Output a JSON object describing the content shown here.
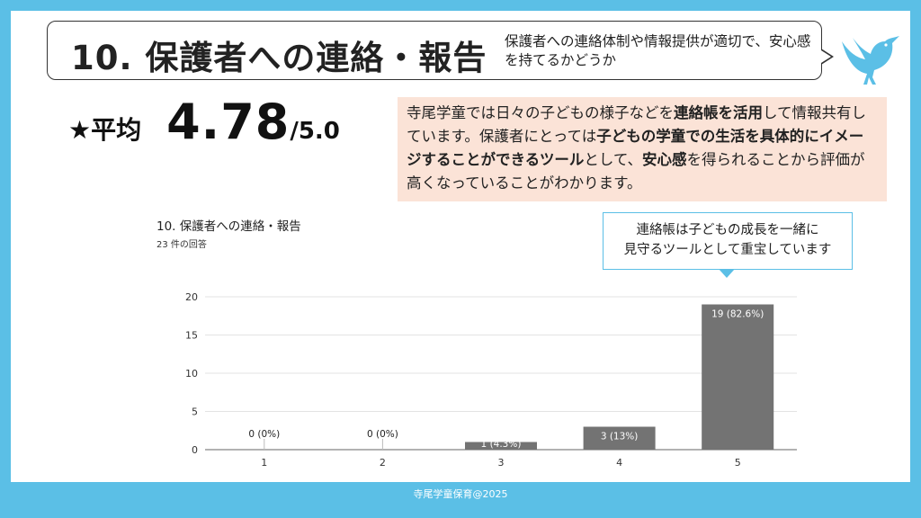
{
  "header": {
    "title": "10. 保護者への連絡・報告",
    "subtitle": "保護者への連絡体制や情報提供が適切で、安心感を持てるかどうか"
  },
  "average": {
    "label": "★平均",
    "value": "4.78",
    "scale": "/5.0"
  },
  "note": {
    "segments": [
      {
        "text": "寺尾学童では日々の子どもの様子などを",
        "bold": false
      },
      {
        "text": "連絡帳を活用",
        "bold": true
      },
      {
        "text": "して情報共有しています。保護者にとっては",
        "bold": false
      },
      {
        "text": "子どもの学童での生活を具体的にイメージすることができるツール",
        "bold": true
      },
      {
        "text": "として、",
        "bold": false
      },
      {
        "text": "安心感",
        "bold": true
      },
      {
        "text": "を得られることから評価が高くなっていることがわかります。",
        "bold": false
      }
    ]
  },
  "callout": {
    "line1": "連絡帳は子どもの成長を一緒に",
    "line2": "見守るツールとして重宝しています"
  },
  "chart_data": {
    "type": "bar",
    "title": "10. 保護者への連絡・報告",
    "subtitle": "23 件の回答",
    "categories": [
      "1",
      "2",
      "3",
      "4",
      "5"
    ],
    "values": [
      0,
      0,
      1,
      3,
      19
    ],
    "data_labels": [
      "0 (0%)",
      "0 (0%)",
      "1 (4.3%)",
      "3 (13%)",
      "19 (82.6%)"
    ],
    "yticks": [
      "0",
      "5",
      "10",
      "15",
      "20"
    ],
    "ylim": [
      0,
      20
    ],
    "grid": true,
    "bar_color": "#737373"
  },
  "footer": {
    "text": "寺尾学童保育@2025"
  },
  "colors": {
    "frame": "#5bbfe6",
    "note_bg": "#fbe3d7",
    "callout_border": "#5bbfe6"
  }
}
